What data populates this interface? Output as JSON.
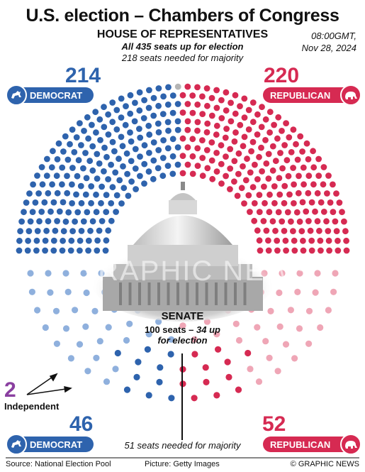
{
  "title": "U.S. election – Chambers of Congress",
  "timestamp": {
    "time": "08:00GMT,",
    "date": "Nov 28, 2024"
  },
  "house": {
    "heading": "HOUSE OF REPRESENTATIVES",
    "sub1": "All 435 seats up for election",
    "sub2": "218 seats needed for majority",
    "democrat_seats": 214,
    "republican_seats": 220,
    "undecided_seats": 1,
    "democrat_label": "DEMOCRAT",
    "republican_label": "REPUBLICAN"
  },
  "senate": {
    "heading": "SENATE",
    "sub1_a": "100 seats – ",
    "sub1_b": "34 up",
    "sub2": "for election",
    "democrat_seats": 46,
    "republican_seats": 52,
    "independent_seats": 2,
    "independent_label": "Independent",
    "majority_text": "51 seats needed for majority",
    "democrat_label": "DEMOCRAT",
    "republican_label": "REPUBLICAN"
  },
  "footer": {
    "source": "Source: National Election Pool",
    "picture": "Picture: Getty Images",
    "copyright": "© GRAPHIC NEWS"
  },
  "colors": {
    "democrat": "#2e63ad",
    "republican": "#d62a52",
    "democrat_light": "#8fb0dd",
    "republican_light": "#efa6b6",
    "independent": "#8a3fa0",
    "undecided": "#b5b5b5"
  },
  "chart_data": [
    {
      "type": "parliament",
      "chamber": "House of Representatives",
      "series": [
        {
          "name": "DEMOCRAT",
          "values": [
            214
          ]
        },
        {
          "name": "undecided",
          "values": [
            1
          ]
        },
        {
          "name": "REPUBLICAN",
          "values": [
            220
          ]
        }
      ],
      "total": 435,
      "majority": 218
    },
    {
      "type": "parliament",
      "chamber": "Senate",
      "series": [
        {
          "name": "Independent",
          "values": [
            2
          ]
        },
        {
          "name": "DEMOCRAT",
          "values": [
            46
          ]
        },
        {
          "name": "REPUBLICAN",
          "values": [
            52
          ]
        }
      ],
      "total": 100,
      "majority": 51
    }
  ]
}
